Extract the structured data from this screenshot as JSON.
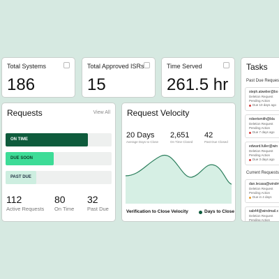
{
  "cards": [
    {
      "label": "Total Systems",
      "value": 186
    },
    {
      "label": "Total Approved ISRs",
      "value": 15
    },
    {
      "label": "Time Served",
      "value": "261.5 hr"
    }
  ],
  "requests": {
    "title": "Requests",
    "link": "View All",
    "bars": [
      "ON TIME",
      "DUE SOON",
      "PAST DUE"
    ],
    "stats": [
      {
        "value": 112,
        "label": "Active Requests"
      },
      {
        "value": 80,
        "label": "On Time"
      },
      {
        "value": 32,
        "label": "Past Due"
      }
    ]
  },
  "velocity": {
    "title": "Request Velocity",
    "stats": [
      {
        "value": "20 Days",
        "label": "Average Days to Close"
      },
      {
        "value": "2,651",
        "label": "On Time Closed"
      },
      {
        "value": 42,
        "label": "Past Due Closed"
      }
    ],
    "footer": "Verification to Close Velocity",
    "legend": "Days to Close"
  },
  "tasks": {
    "title": "Tasks",
    "groups": [
      {
        "title": "Past Due Requests",
        "items": [
          {
            "email": "steph.atwelier@bo",
            "type": "Deletion Request",
            "status": "Pending Action",
            "due": "Due 10 days ago"
          },
          {
            "email": "robertsmith@bla",
            "type": "Deletion Request",
            "status": "Pending Action",
            "due": "Due 7 days ago"
          },
          {
            "email": "edward.fuller@win",
            "type": "Deletion Request",
            "status": "Pending Action",
            "due": "Due 3 days ago"
          }
        ]
      },
      {
        "title": "Current Requests",
        "items": [
          {
            "email": "dan.lecasa@windm",
            "type": "Deletion Request",
            "status": "Pending Action",
            "due": "Due in 4 days"
          },
          {
            "email": "sab44@windmail.x",
            "type": "Deletion Request",
            "status": "Pending Action"
          }
        ]
      }
    ]
  }
}
